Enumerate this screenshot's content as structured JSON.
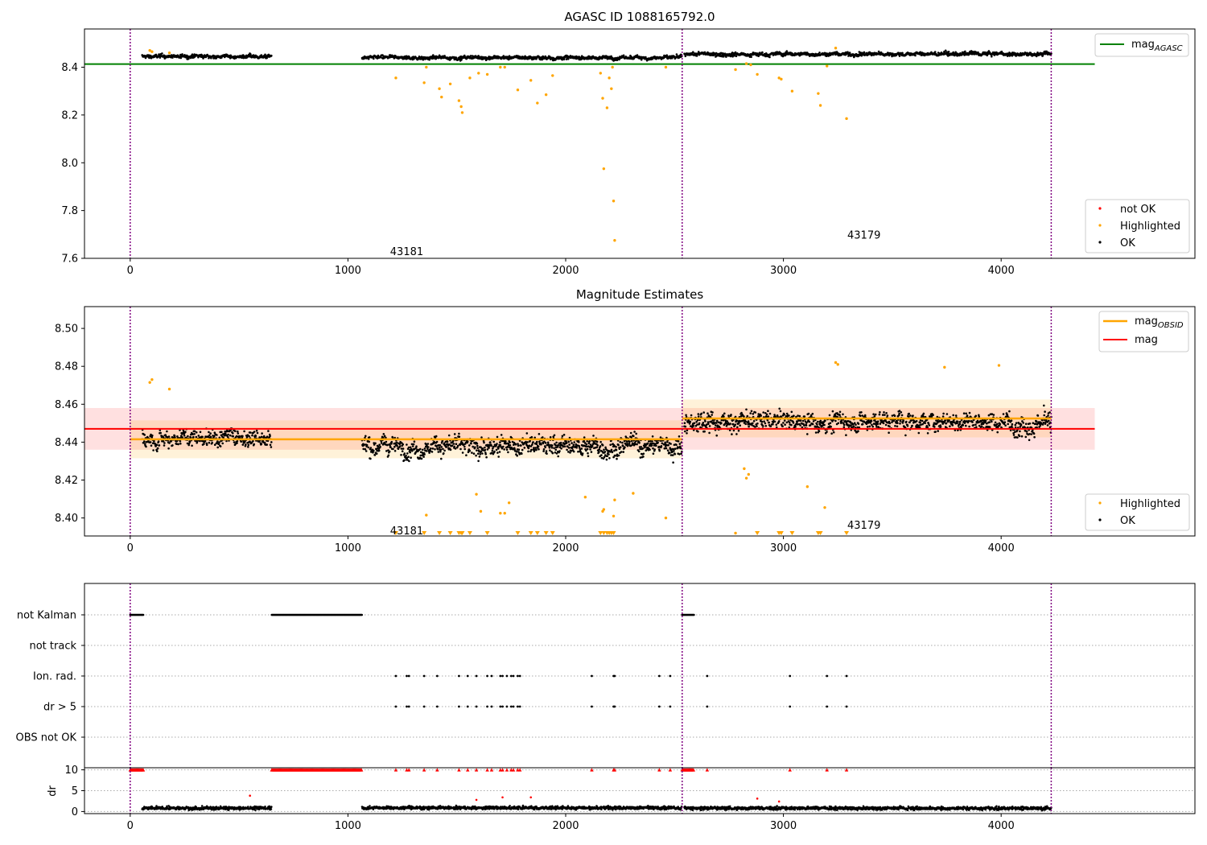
{
  "chart_data": [
    {
      "type": "scatter",
      "title": "AGASC ID 1088165792.0",
      "xlim": [
        -210,
        4890
      ],
      "ylim": [
        7.6,
        8.56
      ],
      "xticks": [
        "0",
        "1000",
        "2000",
        "3000",
        "4000"
      ],
      "yticks": [
        "7.6",
        "7.8",
        "8.0",
        "8.2",
        "8.4"
      ],
      "legend_top": [
        {
          "label": "mag",
          "sub": "AGASC",
          "color": "#008000",
          "kind": "line"
        }
      ],
      "legend_bottom": [
        {
          "label": "not OK",
          "color": "#ff0000",
          "kind": "dot"
        },
        {
          "label": "Highlighted",
          "color": "#ffa500",
          "kind": "dot"
        },
        {
          "label": "OK",
          "color": "#000000",
          "kind": "dot"
        }
      ],
      "reference_line": {
        "name": "mag_AGASC",
        "y": 8.413,
        "x": [
          -210,
          4430
        ],
        "color": "#008000"
      },
      "obsid_boundaries": [
        0,
        2535,
        4230
      ],
      "annotations": [
        {
          "text": "43181",
          "x": 1270,
          "y": 7.63
        },
        {
          "text": "43179",
          "x": 3370,
          "y": 7.7
        }
      ],
      "ok_segments": [
        {
          "x": [
            55,
            650
          ],
          "mean": 8.445,
          "spread": 0.012
        },
        {
          "x": [
            1065,
            2535
          ],
          "mean": 8.44,
          "spread": 0.012
        },
        {
          "x": [
            2545,
            4230
          ],
          "mean": 8.455,
          "spread": 0.013
        }
      ],
      "highlighted_points": [
        [
          1220,
          8.355
        ],
        [
          1350,
          8.335
        ],
        [
          1360,
          8.4
        ],
        [
          1420,
          8.31
        ],
        [
          1430,
          8.275
        ],
        [
          1470,
          8.33
        ],
        [
          1510,
          8.26
        ],
        [
          1520,
          8.235
        ],
        [
          1525,
          8.21
        ],
        [
          1560,
          8.355
        ],
        [
          1600,
          8.375
        ],
        [
          1640,
          8.37
        ],
        [
          1700,
          8.4
        ],
        [
          1720,
          8.4
        ],
        [
          1780,
          8.305
        ],
        [
          1840,
          8.345
        ],
        [
          1870,
          8.25
        ],
        [
          1910,
          8.285
        ],
        [
          1940,
          8.365
        ],
        [
          2160,
          8.375
        ],
        [
          2170,
          8.27
        ],
        [
          2175,
          7.975
        ],
        [
          2190,
          8.23
        ],
        [
          2200,
          8.355
        ],
        [
          2210,
          8.31
        ],
        [
          2215,
          8.4
        ],
        [
          2220,
          7.84
        ],
        [
          2225,
          7.675
        ],
        [
          2460,
          8.4
        ],
        [
          2780,
          8.39
        ],
        [
          2830,
          8.415
        ],
        [
          2850,
          8.41
        ],
        [
          2880,
          8.37
        ],
        [
          2980,
          8.355
        ],
        [
          2990,
          8.35
        ],
        [
          3040,
          8.3
        ],
        [
          3160,
          8.29
        ],
        [
          3170,
          8.24
        ],
        [
          3200,
          8.405
        ],
        [
          3290,
          8.185
        ],
        [
          3240,
          8.48
        ],
        [
          90,
          8.47
        ],
        [
          100,
          8.465
        ],
        [
          180,
          8.46
        ]
      ]
    },
    {
      "type": "scatter",
      "title": "Magnitude Estimates",
      "xlim": [
        -210,
        4890
      ],
      "ylim": [
        8.3905,
        8.5115
      ],
      "xticks": [
        "0",
        "1000",
        "2000",
        "3000",
        "4000"
      ],
      "yticks": [
        "8.40",
        "8.42",
        "8.44",
        "8.46",
        "8.48",
        "8.50"
      ],
      "legend_top": [
        {
          "label": "mag",
          "sub": "OBSID",
          "color": "#ffa500",
          "kind": "line"
        },
        {
          "label": "mag",
          "sub": "",
          "color": "#ff0000",
          "kind": "line"
        }
      ],
      "legend_bottom": [
        {
          "label": "Highlighted",
          "color": "#ffa500",
          "kind": "dot"
        },
        {
          "label": "OK",
          "color": "#000000",
          "kind": "dot"
        }
      ],
      "mag": {
        "y": 8.447,
        "band": [
          8.436,
          8.458
        ],
        "x": [
          -210,
          4430
        ],
        "color": "#ff0000"
      },
      "mag_obsid": [
        {
          "x": [
            0,
            2535
          ],
          "y": 8.4415,
          "band": [
            8.4315,
            8.4515
          ]
        },
        {
          "x": [
            2535,
            4230
          ],
          "y": 8.4525,
          "band": [
            8.4425,
            8.4625
          ]
        }
      ],
      "obsid_boundaries": [
        0,
        2535,
        4230
      ],
      "annotations": [
        {
          "text": "43181",
          "x": 1270,
          "y": 8.3935
        },
        {
          "text": "43179",
          "x": 3370,
          "y": 8.3965
        }
      ],
      "ok_segments": [
        {
          "x": [
            55,
            650
          ],
          "mean": 8.443,
          "spread": 0.007
        },
        {
          "x": [
            1065,
            2535
          ],
          "mean": 8.438,
          "spread": 0.008
        },
        {
          "x": [
            2545,
            4230
          ],
          "mean": 8.451,
          "spread": 0.008
        }
      ],
      "highlighted_points": [
        [
          1360,
          8.4015
        ],
        [
          1590,
          8.4125
        ],
        [
          1610,
          8.4035
        ],
        [
          1700,
          8.4025
        ],
        [
          1720,
          8.4025
        ],
        [
          1740,
          8.408
        ],
        [
          2090,
          8.411
        ],
        [
          2170,
          8.4035
        ],
        [
          2175,
          8.4045
        ],
        [
          2220,
          8.401
        ],
        [
          2225,
          8.4095
        ],
        [
          2310,
          8.413
        ],
        [
          2460,
          8.4
        ],
        [
          2780,
          8.392
        ],
        [
          2820,
          8.426
        ],
        [
          2830,
          8.421
        ],
        [
          2840,
          8.423
        ],
        [
          3110,
          8.4165
        ],
        [
          3190,
          8.4055
        ],
        [
          3240,
          8.482
        ],
        [
          3250,
          8.481
        ],
        [
          3740,
          8.4795
        ],
        [
          3990,
          8.4805
        ],
        [
          90,
          8.4715
        ],
        [
          100,
          8.473
        ],
        [
          180,
          8.468
        ]
      ],
      "below_range_markers": [
        1220,
        1350,
        1420,
        1470,
        1510,
        1520,
        1525,
        1560,
        1640,
        1780,
        1840,
        1870,
        1910,
        1940,
        2160,
        2175,
        2190,
        2200,
        2210,
        2220,
        2880,
        2980,
        2990,
        3040,
        3160,
        3170,
        3290
      ]
    },
    {
      "type": "scatter",
      "title": "",
      "xlim": [
        -210,
        4890
      ],
      "categories": [
        "not Kalman",
        "not track",
        "Ion. rad.",
        "dr > 5",
        "OBS not OK"
      ],
      "flags": {
        "not Kalman": [
          [
            0,
            60
          ],
          [
            650,
            1065
          ],
          [
            2535,
            2590
          ]
        ],
        "not track": [],
        "Ion. rad.": [
          1220,
          1270,
          1280,
          1350,
          1410,
          1510,
          1550,
          1590,
          1640,
          1660,
          1700,
          1710,
          1730,
          1750,
          1760,
          1780,
          1790,
          2120,
          2220,
          2225,
          2430,
          2480,
          2650,
          3030,
          3200,
          3290
        ],
        "dr > 5": [
          1220,
          1270,
          1280,
          1350,
          1410,
          1510,
          1550,
          1590,
          1640,
          1660,
          1700,
          1710,
          1730,
          1750,
          1760,
          1780,
          1790,
          2120,
          2220,
          2225,
          2430,
          2480,
          2650,
          3030,
          3200,
          3290
        ],
        "OBS not OK": []
      },
      "obsid_boundaries": [
        0,
        2535,
        4230
      ]
    },
    {
      "type": "scatter",
      "title": "",
      "ylabel": "dr",
      "xlim": [
        -210,
        4890
      ],
      "ylim": [
        -0.5,
        10.5
      ],
      "xticks": [
        "0",
        "1000",
        "2000",
        "3000",
        "4000"
      ],
      "yticks": [
        "0",
        "5",
        "10"
      ],
      "clipped_at_10_ranges": [
        [
          0,
          60
        ],
        [
          650,
          1065
        ],
        [
          2535,
          2590
        ]
      ],
      "clipped_at_10_points": [
        1220,
        1270,
        1280,
        1350,
        1410,
        1510,
        1550,
        1590,
        1640,
        1660,
        1700,
        1710,
        1730,
        1750,
        1760,
        1780,
        1790,
        2120,
        2220,
        2225,
        2430,
        2480,
        2650,
        3030,
        3200,
        3290
      ],
      "ok_segments": [
        {
          "x": [
            55,
            650
          ],
          "mean": 0.8,
          "spread": 0.4
        },
        {
          "x": [
            1065,
            2535
          ],
          "mean": 0.9,
          "spread": 0.4
        },
        {
          "x": [
            2545,
            4230
          ],
          "mean": 0.8,
          "spread": 0.4
        }
      ],
      "outlier_points": [
        [
          550,
          3.8
        ],
        [
          1590,
          2.8
        ],
        [
          1710,
          3.4
        ],
        [
          1840,
          3.4
        ],
        [
          2880,
          3.1
        ],
        [
          2980,
          2.4
        ]
      ],
      "obsid_boundaries": [
        0,
        2535,
        4230
      ]
    }
  ]
}
